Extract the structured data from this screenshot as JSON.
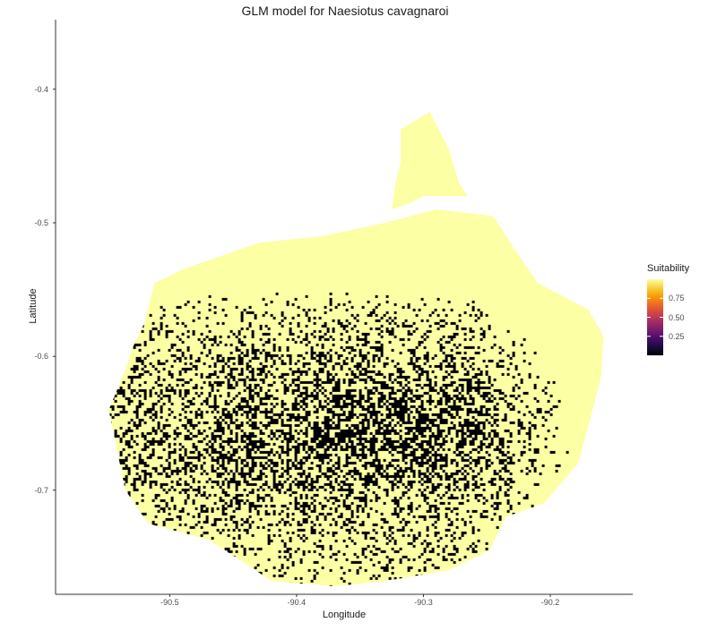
{
  "title": "GLM model for Naesiotus cavagnaroi",
  "xlabel": "Longitude",
  "ylabel": "Latitude",
  "legend": {
    "title": "Suitability",
    "ticks": [
      {
        "value": 0.75,
        "label": "0.75"
      },
      {
        "value": 0.5,
        "label": "0.50"
      },
      {
        "value": 0.25,
        "label": "0.25"
      }
    ],
    "range": [
      0,
      1
    ],
    "placement": "right",
    "colormap": "inferno",
    "gradient_colors": [
      "#000004",
      "#1b0c41",
      "#4a0c6b",
      "#781c6d",
      "#a52c60",
      "#cf4446",
      "#ed6925",
      "#fb9b06",
      "#f7d13d",
      "#fcffa4"
    ]
  },
  "chart_data": {
    "type": "heatmap",
    "title": "GLM model for Naesiotus cavagnaroi",
    "xlabel": "Longitude",
    "ylabel": "Latitude",
    "xlim": [
      -90.59,
      -90.135
    ],
    "ylim": [
      -0.778,
      -0.348
    ],
    "x_ticks": [
      {
        "value": -90.5,
        "label": "-90.5"
      },
      {
        "value": -90.4,
        "label": "-90.4"
      },
      {
        "value": -90.3,
        "label": "-90.3"
      },
      {
        "value": -90.2,
        "label": "-90.2"
      }
    ],
    "y_ticks": [
      {
        "value": -0.4,
        "label": "-0.4"
      },
      {
        "value": -0.5,
        "label": "-0.5"
      },
      {
        "value": -0.6,
        "label": "-0.6"
      },
      {
        "value": -0.7,
        "label": "-0.7"
      }
    ],
    "grid": false,
    "colors": {
      "high": "#fcffa4",
      "low": "#000004"
    },
    "island_outline": [
      [
        -90.535,
        -0.61
      ],
      [
        -90.548,
        -0.64
      ],
      [
        -90.535,
        -0.7
      ],
      [
        -90.517,
        -0.725
      ],
      [
        -90.47,
        -0.737
      ],
      [
        -90.44,
        -0.755
      ],
      [
        -90.42,
        -0.768
      ],
      [
        -90.37,
        -0.772
      ],
      [
        -90.33,
        -0.768
      ],
      [
        -90.28,
        -0.76
      ],
      [
        -90.248,
        -0.745
      ],
      [
        -90.235,
        -0.72
      ],
      [
        -90.205,
        -0.71
      ],
      [
        -90.178,
        -0.68
      ],
      [
        -90.168,
        -0.645
      ],
      [
        -90.16,
        -0.615
      ],
      [
        -90.158,
        -0.585
      ],
      [
        -90.17,
        -0.565
      ],
      [
        -90.21,
        -0.545
      ],
      [
        -90.235,
        -0.51
      ],
      [
        -90.245,
        -0.495
      ],
      [
        -90.29,
        -0.49
      ],
      [
        -90.33,
        -0.5
      ],
      [
        -90.38,
        -0.51
      ],
      [
        -90.43,
        -0.515
      ],
      [
        -90.46,
        -0.525
      ],
      [
        -90.49,
        -0.535
      ],
      [
        -90.512,
        -0.545
      ],
      [
        -90.52,
        -0.575
      ],
      [
        -90.53,
        -0.595
      ]
    ],
    "northern_extension": [
      [
        -90.318,
        -0.43
      ],
      [
        -90.295,
        -0.417
      ],
      [
        -90.28,
        -0.445
      ],
      [
        -90.272,
        -0.47
      ],
      [
        -90.265,
        -0.48
      ],
      [
        -90.3,
        -0.48
      ],
      [
        -90.31,
        -0.485
      ],
      [
        -90.325,
        -0.49
      ],
      [
        -90.322,
        -0.47
      ],
      [
        -90.318,
        -0.455
      ]
    ],
    "low_suitability_core": {
      "center": [
        -90.35,
        -0.655
      ],
      "radius": [
        0.1,
        0.03
      ]
    }
  }
}
